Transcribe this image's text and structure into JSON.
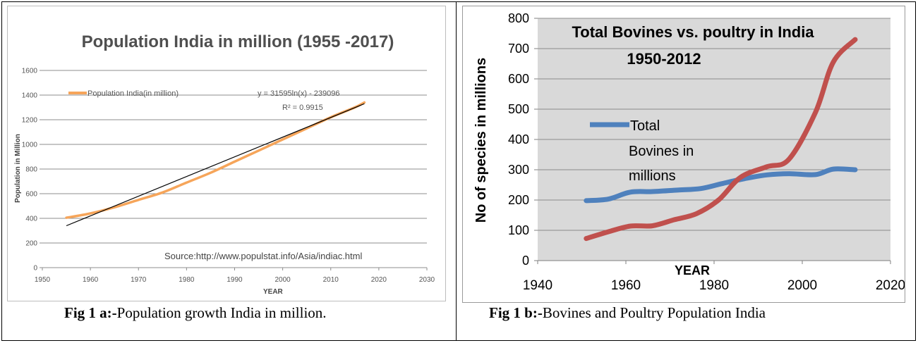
{
  "chart_data": [
    {
      "type": "line",
      "title": "Population India in million (1955 -2017)",
      "xlabel": "YEAR",
      "ylabel": "Population in Million",
      "xlim": [
        1950,
        2030
      ],
      "ylim": [
        0,
        1600
      ],
      "x_ticks": [
        "1950",
        "1960",
        "1970",
        "1980",
        "1990",
        "2000",
        "2010",
        "2020",
        "2030"
      ],
      "y_ticks": [
        "0",
        "200",
        "400",
        "600",
        "800",
        "1000",
        "1200",
        "1400",
        "1600"
      ],
      "grid": true,
      "legend": "top-left",
      "series": [
        {
          "name": "Population India(in million)",
          "color": "#f6a55a",
          "x": [
            1955,
            1960,
            1965,
            1970,
            1975,
            1980,
            1985,
            1990,
            1995,
            2000,
            2005,
            2010,
            2015,
            2017
          ],
          "y": [
            405,
            440,
            490,
            550,
            610,
            690,
            770,
            860,
            950,
            1040,
            1130,
            1220,
            1300,
            1340
          ]
        }
      ],
      "trendline": {
        "color": "#000000",
        "equation": "y = 31595ln(x) - 239096",
        "r_squared": "R² = 0.9915",
        "x": [
          1955,
          2017
        ],
        "y": [
          340,
          1330
        ]
      },
      "annotation": "Source:http://www.populstat.info/Asia/indiac.html"
    },
    {
      "type": "line",
      "title_lines": [
        "Total Bovines vs. poultry in India",
        "1950-2012"
      ],
      "xlabel": "YEAR",
      "ylabel": "No of species in millions",
      "xlim": [
        1940,
        2020
      ],
      "ylim": [
        0,
        800
      ],
      "x_ticks": [
        "1940",
        "1960",
        "1980",
        "2000",
        "2020"
      ],
      "y_ticks": [
        "0",
        "100",
        "200",
        "300",
        "400",
        "500",
        "600",
        "700",
        "800"
      ],
      "grid": true,
      "background": "#d9d9d9",
      "legend": "center-left",
      "series": [
        {
          "name_lines": [
            "Total",
            "Bovines in",
            "millions"
          ],
          "color": "#4f81bd",
          "x": [
            1951,
            1956,
            1961,
            1966,
            1972,
            1977,
            1982,
            1987,
            1992,
            1997,
            2003,
            2007,
            2012
          ],
          "y": [
            198,
            203,
            226,
            228,
            233,
            238,
            255,
            271,
            283,
            287,
            284,
            302,
            300
          ]
        },
        {
          "name": "",
          "color": "#c0504d",
          "x": [
            1951,
            1956,
            1961,
            1966,
            1971,
            1976,
            1981,
            1986,
            1992,
            1997,
            2003,
            2007,
            2012
          ],
          "y": [
            73,
            95,
            114,
            115,
            135,
            155,
            200,
            275,
            310,
            335,
            490,
            655,
            730
          ]
        }
      ]
    }
  ],
  "captions": {
    "a": {
      "label": "Fig 1 a:-",
      "text": "Population growth India in million."
    },
    "b": {
      "label": "Fig 1 b:-",
      "text": "Bovines and Poultry Population India"
    }
  }
}
